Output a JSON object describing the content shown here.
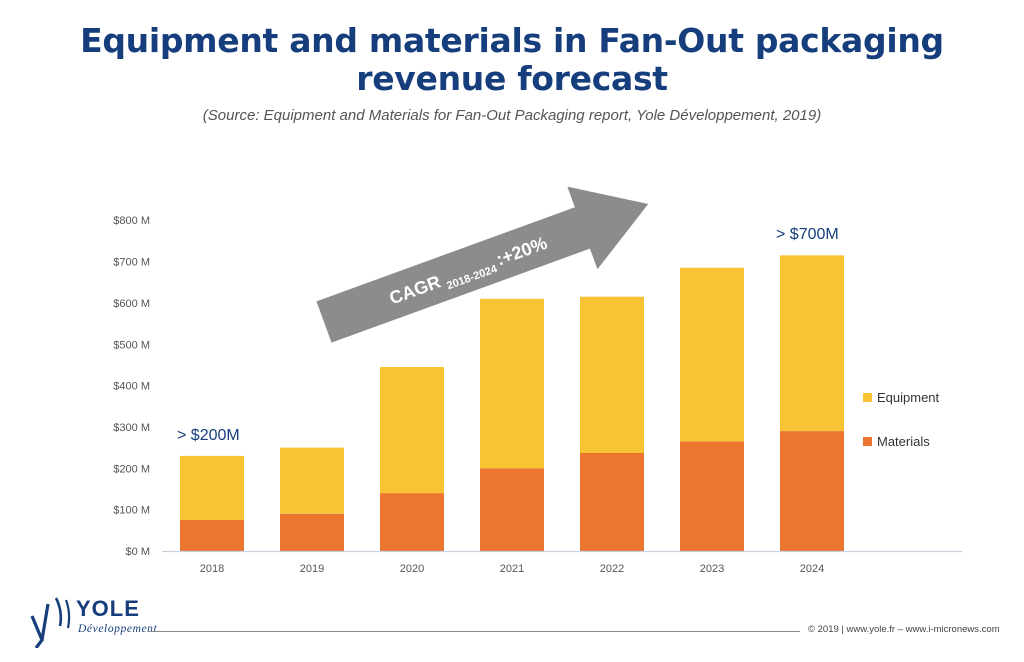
{
  "title_line1": "Equipment and materials in Fan-Out packaging",
  "title_line2": "revenue forecast",
  "subtitle": "(Source: Equipment and Materials for Fan-Out Packaging report, Yole Développement, 2019)",
  "colors": {
    "title": "#163e7c",
    "equipment": "#f9c336",
    "materials": "#ec7630",
    "arrow": "#8c8c8c"
  },
  "annotations": {
    "cagr_main": "CAGR",
    "cagr_sub": "2018-2024",
    "cagr_value": ":+20%",
    "label_2018": "> $200M",
    "label_2024": "> $700M"
  },
  "chart_data": {
    "type": "bar",
    "stacked": true,
    "categories": [
      "2018",
      "2019",
      "2020",
      "2021",
      "2022",
      "2023",
      "2024"
    ],
    "series": [
      {
        "name": "Materials",
        "values": [
          75,
          90,
          140,
          200,
          237,
          265,
          290
        ]
      },
      {
        "name": "Equipment",
        "values": [
          155,
          160,
          305,
          410,
          378,
          420,
          425
        ]
      }
    ],
    "yticks": [
      "$0 M",
      "$100 M",
      "$200 M",
      "$300 M",
      "$400 M",
      "$500 M",
      "$600 M",
      "$700 M",
      "$800 M"
    ],
    "ylim": [
      0,
      800
    ],
    "legend_order": [
      "Equipment",
      "Materials"
    ],
    "legend_position": "right",
    "grid": false
  },
  "logo": {
    "name": "YOLE",
    "sub": "Développement"
  },
  "footer": "© 2019 | www.yole.fr – www.i-micronews.com"
}
